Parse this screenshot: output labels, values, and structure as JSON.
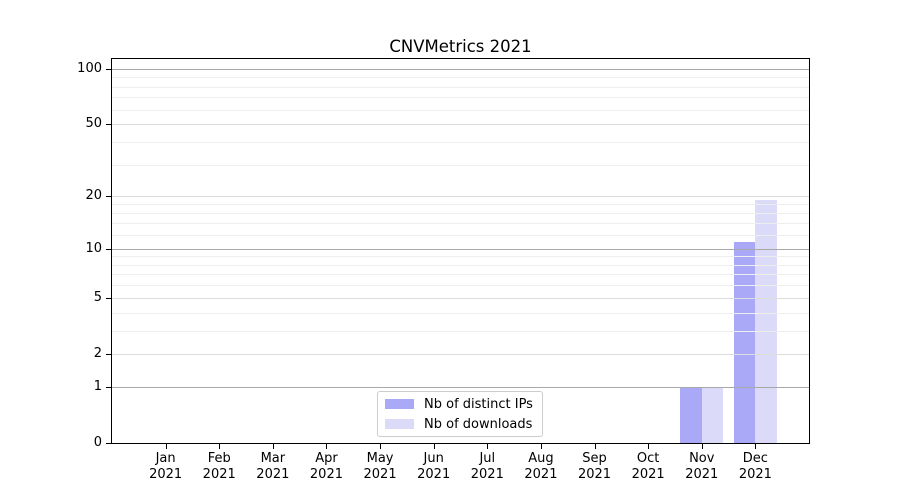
{
  "figure": {
    "background": "#ffffff"
  },
  "chart_data": {
    "type": "bar",
    "title": "CNVMetrics 2021",
    "categories": [
      "Jan",
      "Feb",
      "Mar",
      "Apr",
      "May",
      "Jun",
      "Jul",
      "Aug",
      "Sep",
      "Oct",
      "Nov",
      "Dec"
    ],
    "x_tick_year": "2021",
    "series": [
      {
        "name": "Nb of distinct IPs",
        "color": "#a9a9f7",
        "values": [
          0,
          0,
          0,
          0,
          0,
          0,
          0,
          0,
          0,
          0,
          1,
          11
        ]
      },
      {
        "name": "Nb of downloads",
        "color": "#dbdbf9",
        "values": [
          0,
          0,
          0,
          0,
          0,
          0,
          0,
          0,
          0,
          0,
          1,
          19
        ]
      }
    ],
    "yscale": "log10(value+1)",
    "ylim": [
      0,
      113
    ],
    "yticks": [
      0,
      1,
      2,
      5,
      10,
      20,
      50,
      100
    ],
    "gridlines": {
      "major": [
        1,
        10,
        100
      ],
      "labeled": [
        2,
        5,
        20,
        50
      ],
      "minor": [
        3,
        4,
        6,
        7,
        8,
        9,
        12,
        14,
        16,
        18,
        30,
        40,
        60,
        70,
        80,
        90
      ]
    },
    "grid": "horizontal",
    "legend_position": "lower center",
    "bar_layout": "side-by-side"
  },
  "legend": {
    "items": [
      {
        "label": "Nb of distinct IPs",
        "color": "#a9a9f7"
      },
      {
        "label": "Nb of downloads",
        "color": "#dbdbf9"
      }
    ]
  }
}
